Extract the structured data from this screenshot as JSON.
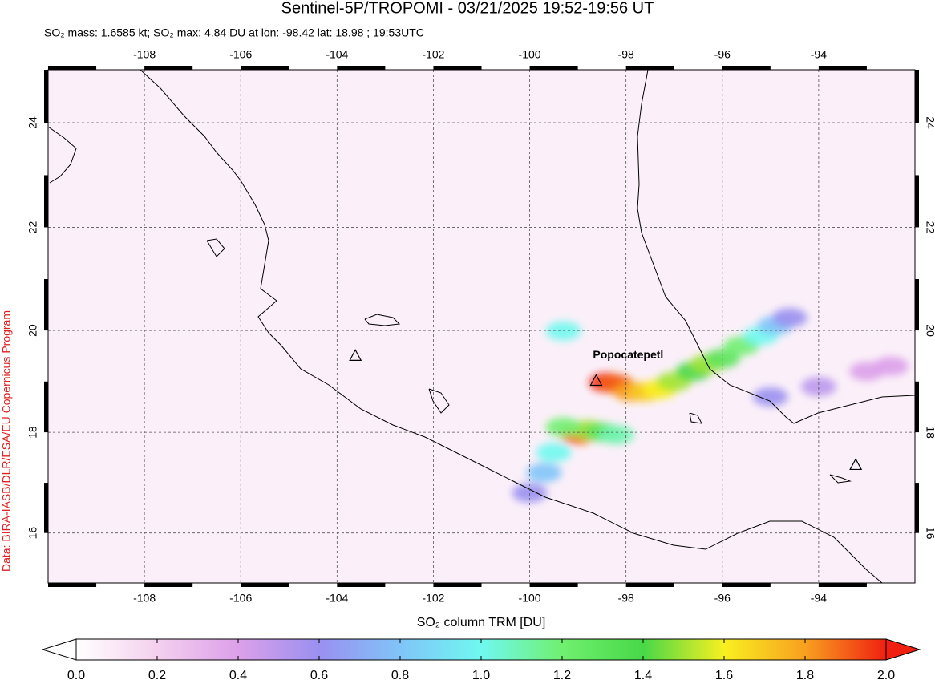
{
  "chart_data": {
    "type": "map",
    "title": "Sentinel-5P/TROPOMI - 03/21/2025 19:52-19:56 UT",
    "subtitle": "SO₂ mass: 1.6585 kt; SO₂ max: 4.84 DU at lon: -98.42 lat: 18.98 ; 19:53UTC",
    "credit": "Data: BIRA-IASB/DLR/ESA/EU Copernicus Program",
    "xlim": [
      -110,
      -92
    ],
    "ylim": [
      15,
      25
    ],
    "xticks": [
      -108,
      -106,
      -104,
      -102,
      -100,
      -98,
      -96,
      -94
    ],
    "yticks": [
      16,
      18,
      20,
      22,
      24
    ],
    "grid": true,
    "volcanoes": [
      {
        "name": "Popocatepetl",
        "lon": -98.62,
        "lat": 19.02
      },
      {
        "lon": -103.62,
        "lat": 19.51
      },
      {
        "lon": -93.23,
        "lat": 17.36
      }
    ],
    "plume": {
      "lon": [
        -98.4,
        -98.2,
        -97.9,
        -97.6,
        -97.3,
        -97.0,
        -96.6,
        -96.3,
        -96.0,
        -95.6,
        -95.2,
        -94.9,
        -94.6,
        -99.0,
        -98.8,
        -98.5,
        -98.2,
        -99.3,
        -99.5,
        -99.7,
        -100.0,
        -95.0,
        -94.0,
        -93.0,
        -92.5,
        -99.3
      ],
      "lat": [
        18.98,
        18.95,
        18.8,
        18.8,
        18.85,
        19.0,
        19.2,
        19.35,
        19.45,
        19.7,
        19.9,
        20.1,
        20.25,
        17.95,
        18.05,
        18.0,
        17.95,
        18.1,
        17.6,
        17.2,
        16.8,
        18.7,
        18.9,
        19.2,
        19.3,
        19.99
      ],
      "values": [
        2.0,
        1.9,
        1.8,
        1.7,
        1.6,
        1.5,
        1.4,
        1.5,
        1.3,
        1.2,
        1.0,
        0.8,
        0.6,
        1.9,
        1.5,
        1.3,
        1.1,
        1.2,
        1.0,
        0.8,
        0.6,
        0.6,
        0.5,
        0.4,
        0.4,
        1.0
      ]
    },
    "colorbar": {
      "label": "SO₂ column TRM [DU]",
      "range": [
        0,
        2
      ],
      "colors": [
        "#ffffff",
        "#f4d0ee",
        "#dca0ea",
        "#9a90f0",
        "#80c4f8",
        "#70f8f0",
        "#70f070",
        "#48d848",
        "#f8f020",
        "#f8a020",
        "#f02010"
      ],
      "ticks": [
        {
          "value": 0,
          "label": "0.0"
        },
        {
          "value": 0.2,
          "label": "0.2"
        },
        {
          "value": 0.4,
          "label": "0.4"
        },
        {
          "value": 0.6,
          "label": "0.6"
        },
        {
          "value": 0.8,
          "label": "0.8"
        },
        {
          "value": 1,
          "label": "1.0"
        },
        {
          "value": 1.2,
          "label": "1.2"
        },
        {
          "value": 1.4,
          "label": "1.4"
        },
        {
          "value": 1.6,
          "label": "1.6"
        },
        {
          "value": 1.8,
          "label": "1.8"
        },
        {
          "value": 2,
          "label": "2.0"
        }
      ]
    }
  }
}
